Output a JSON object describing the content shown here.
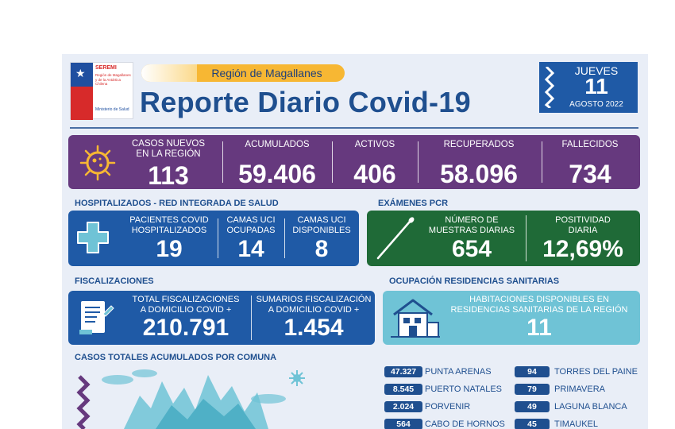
{
  "logo": {
    "seremi": "SEREMI",
    "org": "Región de Magallanes y de la Antártica Chilena",
    "ministry": "Ministerio de Salud"
  },
  "header": {
    "region": "Región de Magallanes",
    "title": "Reporte Diario Covid-19"
  },
  "date": {
    "day": "JUEVES",
    "number": "11",
    "month_year": "AGOSTO 2022"
  },
  "stats": {
    "casos_nuevos": {
      "label_1": "CASOS NUEVOS",
      "label_2": "EN LA REGIÓN",
      "value": "113"
    },
    "acumulados": {
      "label": "ACUMULADOS",
      "value": "59.406"
    },
    "activos": {
      "label": "ACTIVOS",
      "value": "406"
    },
    "recuperados": {
      "label": "RECUPERADOS",
      "value": "58.096"
    },
    "fallecidos": {
      "label": "FALLECIDOS",
      "value": "734"
    }
  },
  "hospitalizados": {
    "title": "HOSPITALIZADOS - RED INTEGRADA DE SALUD",
    "pacientes": {
      "label_1": "PACIENTES COVID",
      "label_2": "HOSPITALIZADOS",
      "value": "19"
    },
    "uci_ocupadas": {
      "label_1": "CAMAS UCI",
      "label_2": "OCUPADAS",
      "value": "14"
    },
    "uci_disponibles": {
      "label_1": "CAMAS UCI",
      "label_2": "DISPONIBLES",
      "value": "8"
    }
  },
  "pcr": {
    "title": "EXÁMENES PCR",
    "muestras": {
      "label_1": "NÚMERO DE",
      "label_2": "MUESTRAS DIARIAS",
      "value": "654"
    },
    "positividad": {
      "label_1": "POSITIVIDAD",
      "label_2": "DIARIA",
      "value": "12,69%"
    }
  },
  "fiscalizaciones": {
    "title": "FISCALIZACIONES",
    "total": {
      "label_1": "TOTAL FISCALIZACIONES",
      "label_2": "A DOMICILIO COVID +",
      "value": "210.791"
    },
    "sumarios": {
      "label_1": "SUMARIOS FISCALIZACIÓN",
      "label_2": "A DOMICILIO COVID +",
      "value": "1.454"
    }
  },
  "residencias": {
    "title": "OCUPACIÓN RESIDENCIAS SANITARIAS",
    "label_1": "HABITACIONES DISPONIBLES EN",
    "label_2": "RESIDENCIAS SANITARIAS DE LA REGIÓN",
    "value": "11"
  },
  "comunas": {
    "title": "CASOS TOTALES ACUMULADOS POR COMUNA",
    "left": [
      {
        "count": "47.327",
        "name": "PUNTA ARENAS"
      },
      {
        "count": "8.545",
        "name": "PUERTO NATALES"
      },
      {
        "count": "2.024",
        "name": "PORVENIR"
      },
      {
        "count": "564",
        "name": "CABO DE HORNOS"
      }
    ],
    "right": [
      {
        "count": "94",
        "name": "TORRES DEL PAINE"
      },
      {
        "count": "79",
        "name": "PRIMAVERA"
      },
      {
        "count": "49",
        "name": "LAGUNA BLANCA"
      },
      {
        "count": "45",
        "name": "TIMAUKEL"
      }
    ]
  },
  "colors": {
    "purple": "#66397e",
    "blue": "#1f5aa6",
    "green": "#1f6a37",
    "teal": "#6fc3d6",
    "orange": "#f7b733",
    "title_blue": "#1f4f8f"
  },
  "icons": [
    "virus-icon",
    "medical-cross-icon",
    "swab-icon",
    "document-icon",
    "house-icon",
    "zigzag-icon"
  ]
}
